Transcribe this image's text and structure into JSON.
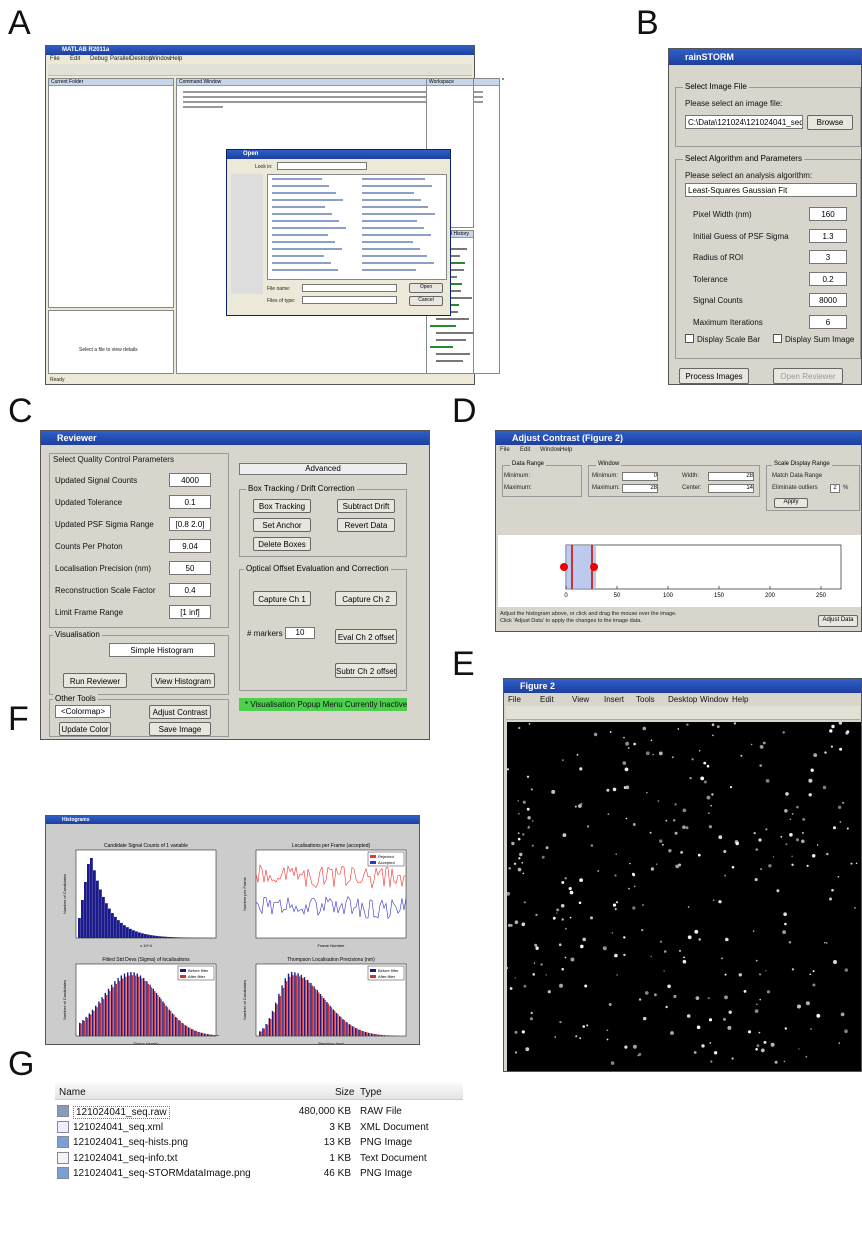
{
  "panel_labels": [
    "A",
    "B",
    "C",
    "D",
    "E",
    "F",
    "G"
  ],
  "panel_a": {
    "title": "MATLAB R2011a",
    "menu": [
      "File",
      "Edit",
      "Debug",
      "Parallel",
      "Desktop",
      "Window",
      "Help"
    ],
    "current_folder": "Current Folder",
    "command_window": "Command Window",
    "workspace": "Workspace",
    "command_history": "Command History",
    "details": "Select a file to view details",
    "dialog": {
      "title": "Open",
      "look_in": "Look in:",
      "file_name": "File name:",
      "files_of_type": "Files of type:",
      "open": "Open",
      "cancel": "Cancel"
    },
    "status": "Ready"
  },
  "panel_b": {
    "title": "rainSTORM",
    "file_group": "Select Image File",
    "file_prompt": "Please select an image file:",
    "file_path": "C:\\Data\\121024\\121024041_seq",
    "browse": "Browse",
    "algo_group": "Select Algorithm and Parameters",
    "algo_prompt": "Please select an analysis algorithm:",
    "algorithm": "Least-Squares Gaussian Fit",
    "params": [
      [
        "Pixel Width (nm)",
        "160"
      ],
      [
        "Initial Guess of PSF Sigma",
        "1.3"
      ],
      [
        "Radius of ROI",
        "3"
      ],
      [
        "Tolerance",
        "0.2"
      ],
      [
        "Signal Counts",
        "8000"
      ],
      [
        "Maximum Iterations",
        "6"
      ]
    ],
    "scale_bar": "Display Scale Bar",
    "sum_image": "Display Sum Image",
    "process": "Process Images",
    "reviewer": "Open Reviewer"
  },
  "panel_c": {
    "title": "Reviewer",
    "qc_group": "Select Quality Control Parameters",
    "params": [
      [
        "Updated Signal Counts",
        "4000"
      ],
      [
        "Updated Tolerance",
        "0.1"
      ],
      [
        "Updated PSF Sigma Range",
        "[0.8 2.0]"
      ],
      [
        "Counts Per Photon",
        "9.04"
      ],
      [
        "Localisation Precision (nm)",
        "50"
      ],
      [
        "Reconstruction Scale Factor",
        "0.4"
      ],
      [
        "Limit Frame Range",
        "[1 inf]"
      ]
    ],
    "vis_group": "Visualisation",
    "vis_mode": "Simple Histogram",
    "run": "Run Reviewer",
    "view_hist": "View Histogram",
    "tools_group": "Other Tools",
    "colormap": "<Colormap>",
    "adjust": "Adjust Contrast",
    "update_color": "Update Color",
    "save": "Save Image",
    "advanced": "Advanced",
    "drift_group": "Box Tracking / Drift Correction",
    "box_tracking": "Box Tracking",
    "subtract_drift": "Subtract Drift",
    "set_anchor": "Set Anchor",
    "revert": "Revert Data",
    "delete_boxes": "Delete Boxes",
    "offset_group": "Optical Offset Evaluation and Correction",
    "capture1": "Capture Ch 1",
    "capture2": "Capture Ch 2",
    "markers": "# markers",
    "markers_value": "10",
    "eval": "Eval Ch 2 offset",
    "subtract": "Subtr Ch 2 offset",
    "status": "* Visualisation Popup Menu Currently Inactive"
  },
  "panel_d": {
    "title": "Adjust Contrast (Figure 2)",
    "menu": [
      "File",
      "Edit",
      "Window",
      "Help"
    ],
    "data_range": "Data Range",
    "minimum": "Minimum:",
    "maximum": "Maximum:",
    "window": "Window",
    "win_min": "0",
    "win_max": "28",
    "width": "Width:",
    "width_value": "28",
    "center": "Center:",
    "center_value": "14",
    "scale_range": "Scale Display Range",
    "match": "Match Data Range",
    "eliminate": "Eliminate outliers",
    "outlier_value": "2",
    "percent": "%",
    "apply": "Apply",
    "ticks": [
      "0",
      "50",
      "100",
      "150",
      "200",
      "250"
    ],
    "hint1": "Adjust the histogram above, or click and drag the mouse over the image.",
    "hint2": "Click 'Adjust Data' to apply the changes to the image data.",
    "adjust_data": "Adjust Data"
  },
  "panel_e": {
    "title": "Figure 2",
    "menu": [
      "File",
      "Edit",
      "View",
      "Insert",
      "Tools",
      "Desktop",
      "Window",
      "Help"
    ]
  },
  "panel_f": {
    "title": "Histograms",
    "plots": [
      {
        "title": "Candidate Signal Counts of 1 variable",
        "ylabel": "Number of Candidates",
        "xlabel": "x 10^4"
      },
      {
        "title": "Localisations per Frame (accepted)",
        "ylabel": "Number per Frame",
        "xlabel": "Frame Number",
        "legend": [
          "Rejected",
          "Accepted"
        ]
      },
      {
        "title": "Fitted Std Devs (Sigma) of localisations",
        "ylabel": "Number of Candidates",
        "xlabel": "Sigma (pixels)",
        "legend": [
          "Before filter",
          "After filter"
        ]
      },
      {
        "title": "Thompson Localisation Precisions (nm)",
        "ylabel": "Number of Candidates",
        "xlabel": "Precision (nm)",
        "legend": [
          "Before filter",
          "After filter"
        ]
      }
    ]
  },
  "panel_g": {
    "header": [
      "Name",
      "Size",
      "Type"
    ],
    "rows": [
      [
        "121024041_seq.raw",
        "480,000 KB",
        "RAW File"
      ],
      [
        "121024041_seq.xml",
        "3 KB",
        "XML Document"
      ],
      [
        "121024041_seq-hists.png",
        "13 KB",
        "PNG Image"
      ],
      [
        "121024041_seq-info.txt",
        "1 KB",
        "Text Document"
      ],
      [
        "121024041_seq-STORMdataImage.png",
        "46 KB",
        "PNG Image"
      ]
    ]
  }
}
